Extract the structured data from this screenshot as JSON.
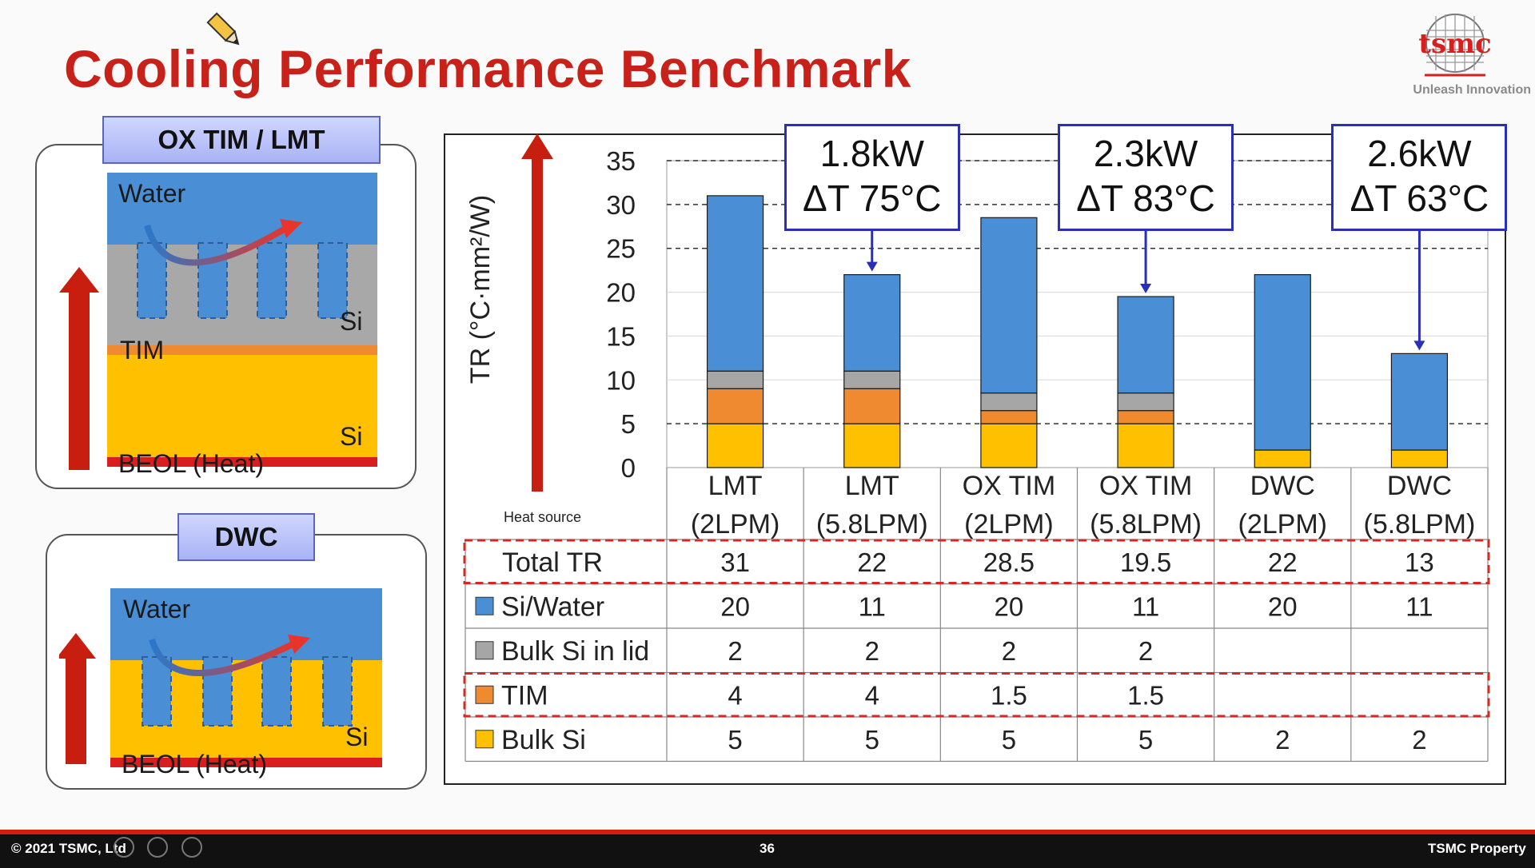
{
  "slide": {
    "title": "Cooling Performance Benchmark",
    "logo_text": "tsmc",
    "tagline": "Unleash Innovation",
    "footer_left": "© 2021 TSMC, Ltd",
    "page_number": "36",
    "footer_right": "TSMC Property"
  },
  "diagram_top": {
    "label": "OX TIM / LMT",
    "layers": {
      "water": "Water",
      "si_upper": "Si",
      "tim": "TIM",
      "si_lower": "Si",
      "beol": "BEOL (Heat)"
    }
  },
  "diagram_bottom": {
    "label": "DWC",
    "layers": {
      "water": "Water",
      "si": "Si",
      "beol": "BEOL (Heat)"
    }
  },
  "callouts": [
    {
      "power": "1.8kW",
      "delta_t": "ΔT 75°C",
      "target_column": 1
    },
    {
      "power": "2.3kW",
      "delta_t": "ΔT 83°C",
      "target_column": 3
    },
    {
      "power": "2.6kW",
      "delta_t": "ΔT 63°C",
      "target_column": 5
    }
  ],
  "colors": {
    "si_water": "#4a8fd6",
    "bulk_si_in_lid": "#a6a6a6",
    "tim": "#f08a30",
    "bulk_si": "#ffc000",
    "title_red": "#c8211a",
    "arrow_red": "#c81e10",
    "callout_border": "#2a2fb8"
  },
  "chart_data": {
    "type": "bar",
    "stacked": true,
    "ylabel": "TR (°C·mm²/W)",
    "heat_source_label": "Heat source",
    "ylim": [
      0,
      35
    ],
    "yticks": [
      "0",
      "5",
      "10",
      "15",
      "20",
      "25",
      "30",
      "35"
    ],
    "ytick_values": [
      0,
      5,
      10,
      15,
      20,
      25,
      30,
      35
    ],
    "categories": [
      [
        "LMT",
        "(2LPM)"
      ],
      [
        "LMT",
        "(5.8LPM)"
      ],
      [
        "OX TIM",
        "(2LPM)"
      ],
      [
        "OX TIM",
        "(5.8LPM)"
      ],
      [
        "DWC",
        "(2LPM)"
      ],
      [
        "DWC",
        "(5.8LPM)"
      ]
    ],
    "series": [
      {
        "name": "Bulk Si",
        "values": [
          5,
          5,
          5,
          5,
          2,
          2
        ]
      },
      {
        "name": "TIM",
        "values": [
          4,
          4,
          1.5,
          1.5,
          0,
          0
        ]
      },
      {
        "name": "Bulk Si in lid",
        "values": [
          2,
          2,
          2,
          2,
          0,
          0
        ]
      },
      {
        "name": "Si/Water",
        "values": [
          20,
          11,
          20,
          11,
          20,
          11
        ]
      }
    ],
    "total_label": "Total TR",
    "totals": [
      31,
      22,
      28.5,
      19.5,
      22,
      13
    ],
    "table_rows": [
      {
        "label": "Total TR",
        "swatch": "",
        "cells": [
          "31",
          "22",
          "28.5",
          "19.5",
          "22",
          "13"
        ],
        "highlight": true
      },
      {
        "label": "Si/Water",
        "swatch": "si_water",
        "cells": [
          "20",
          "11",
          "20",
          "11",
          "20",
          "11"
        ],
        "highlight": false
      },
      {
        "label": "Bulk Si in lid",
        "swatch": "bulk_si_in_lid",
        "cells": [
          "2",
          "2",
          "2",
          "2",
          "",
          ""
        ],
        "highlight": false
      },
      {
        "label": "TIM",
        "swatch": "tim",
        "cells": [
          "4",
          "4",
          "1.5",
          "1.5",
          "",
          ""
        ],
        "highlight": true
      },
      {
        "label": "Bulk Si",
        "swatch": "bulk_si",
        "cells": [
          "5",
          "5",
          "5",
          "5",
          "2",
          "2"
        ],
        "highlight": false
      }
    ],
    "grid": "dashed horizontal lines at 5, 25, 30, 35"
  }
}
